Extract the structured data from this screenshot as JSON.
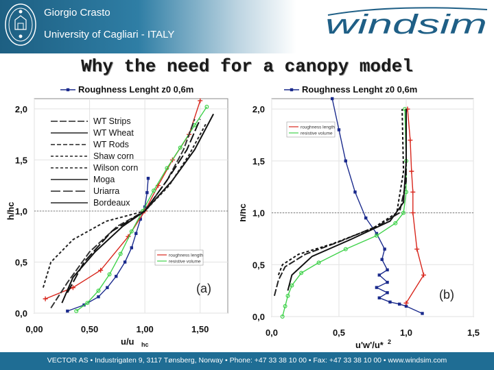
{
  "header": {
    "author": "Giorgio Crasto",
    "affiliation": "University of Cagliari - ITALY",
    "logo_text": "windsim",
    "seal_icon": "university-seal-icon",
    "colors": {
      "band": "#1f6d94",
      "logo": "#1f5f86"
    }
  },
  "title": "Why the need for a canopy model",
  "footer": "VECTOR AS  •  Industrigaten 9, 3117 Tønsberg, Norway  •  Phone: +47 33 38 10 00  •  Fax: +47 33 38 10 00  •  www.windsim.com",
  "chart_data": [
    {
      "type": "line",
      "panel_label": "(a)",
      "xlabel": "u/u",
      "xlabel_sub": "hc",
      "ylabel": "h/hc",
      "xlim": [
        0,
        1.75
      ],
      "ylim": [
        0,
        2.1
      ],
      "x_ticks": [
        "0,00",
        "0,50",
        "1,00",
        "1,50"
      ],
      "x_tick_values": [
        0,
        0.5,
        1.0,
        1.5
      ],
      "y_ticks": [
        "0,0",
        "0,5",
        "1,0",
        "1,5",
        "2,0"
      ],
      "y_tick_values": [
        0,
        0.5,
        1.0,
        1.5,
        2.0
      ],
      "top_legend": "Roughness Lenght z0 0,6m",
      "legend_entries": [
        "WT  Strips",
        "WT  Wheat",
        "WT  Rods",
        "Shaw  corn",
        "Wilson  corn",
        "Moga",
        "Uriarra",
        "Bordeaux"
      ],
      "inset_legend": [
        "roughness length",
        "resistive volume"
      ],
      "series": [
        {
          "name": "Roughness Lenght z0 0,6m",
          "color": "#1a2a8c",
          "marker": "square",
          "x": [
            0.3,
            0.45,
            0.58,
            0.66,
            0.74,
            0.82,
            0.88,
            0.92,
            0.96,
            1.0,
            1.02,
            1.03
          ],
          "y": [
            0.02,
            0.08,
            0.16,
            0.25,
            0.36,
            0.5,
            0.64,
            0.78,
            0.92,
            1.04,
            1.18,
            1.32
          ]
        },
        {
          "name": "roughness length",
          "color": "#d8261c",
          "marker": "plus",
          "x": [
            0.1,
            0.35,
            0.6,
            0.85,
            1.0,
            1.12,
            1.25,
            1.4,
            1.5
          ],
          "y": [
            0.14,
            0.25,
            0.42,
            0.75,
            1.0,
            1.25,
            1.5,
            1.75,
            2.08
          ]
        },
        {
          "name": "resistive volume",
          "color": "#3fd24a",
          "marker": "circle",
          "x": [
            0.38,
            0.48,
            0.58,
            0.68,
            0.78,
            0.88,
            0.98,
            1.08,
            1.2,
            1.32,
            1.45,
            1.56
          ],
          "y": [
            0.02,
            0.1,
            0.22,
            0.38,
            0.58,
            0.8,
            1.0,
            1.2,
            1.42,
            1.62,
            1.84,
            2.02
          ]
        },
        {
          "name": "WT  Strips",
          "color": "#333333",
          "dash": "10 3",
          "x": [
            0.15,
            0.3,
            0.5,
            0.75,
            1.0,
            1.2,
            1.35,
            1.45
          ],
          "y": [
            0.05,
            0.3,
            0.6,
            0.85,
            1.0,
            1.3,
            1.6,
            1.9
          ]
        },
        {
          "name": "Moga",
          "color": "#111111",
          "dash": "",
          "x": [
            0.25,
            0.35,
            0.55,
            0.8,
            1.0,
            1.25,
            1.45,
            1.62
          ],
          "y": [
            0.1,
            0.35,
            0.6,
            0.85,
            1.0,
            1.3,
            1.6,
            1.95
          ]
        },
        {
          "name": "Wilson  corn",
          "color": "#222222",
          "dash": "4 3",
          "x": [
            0.08,
            0.15,
            0.35,
            0.65,
            1.0,
            1.22,
            1.4,
            1.55
          ],
          "y": [
            0.25,
            0.5,
            0.72,
            0.9,
            1.0,
            1.25,
            1.55,
            1.85
          ]
        },
        {
          "name": "Uriarra",
          "color": "#111111",
          "dash": "14 4",
          "x": [
            0.3,
            0.45,
            0.7,
            1.0,
            1.2,
            1.38,
            1.5
          ],
          "y": [
            0.2,
            0.5,
            0.8,
            1.0,
            1.3,
            1.6,
            1.9
          ]
        }
      ]
    },
    {
      "type": "line",
      "panel_label": "(b)",
      "xlabel": "u'w'/u*",
      "xlabel_sup": "2",
      "ylabel": "h/hc",
      "xlim": [
        0,
        1.5
      ],
      "ylim": [
        0,
        2.1
      ],
      "x_ticks": [
        "0,0",
        "0,5",
        "1,0",
        "1,5"
      ],
      "x_tick_values": [
        0,
        0.5,
        1.0,
        1.5
      ],
      "y_ticks": [
        "0,0",
        "0,5",
        "1,0",
        "1,5",
        "2,0"
      ],
      "y_tick_values": [
        0,
        0.5,
        1.0,
        1.5,
        2.0
      ],
      "top_legend": "Roughness Lenght z0 0,6m",
      "inset_legend": [
        "roughness length",
        "resistive volume"
      ],
      "series": [
        {
          "name": "Roughness Lenght z0 0,6m",
          "color": "#1a2a8c",
          "marker": "square",
          "x": [
            0.45,
            0.5,
            0.55,
            0.62,
            0.7,
            0.78,
            0.84,
            0.82,
            0.86,
            0.8,
            0.86,
            0.78,
            0.86,
            0.8,
            0.88,
            0.95,
            1.0,
            1.12
          ],
          "y": [
            2.1,
            1.8,
            1.5,
            1.2,
            0.95,
            0.8,
            0.65,
            0.55,
            0.45,
            0.4,
            0.33,
            0.28,
            0.23,
            0.18,
            0.14,
            0.12,
            0.1,
            0.03
          ]
        },
        {
          "name": "roughness length",
          "color": "#d8261c",
          "marker": "plus",
          "x": [
            1.01,
            1.03,
            1.04,
            1.05,
            1.05,
            1.08,
            1.13,
            1.0
          ],
          "y": [
            2.0,
            1.7,
            1.4,
            1.2,
            1.0,
            0.65,
            0.4,
            0.13
          ]
        },
        {
          "name": "resistive volume",
          "color": "#3fd24a",
          "marker": "circle",
          "x": [
            0.08,
            0.1,
            0.12,
            0.15,
            0.22,
            0.35,
            0.55,
            0.78,
            0.92,
            0.98,
            1.0,
            1.0,
            0.99
          ],
          "y": [
            0.0,
            0.1,
            0.2,
            0.3,
            0.42,
            0.52,
            0.65,
            0.78,
            0.9,
            1.0,
            1.2,
            1.5,
            2.0
          ]
        },
        {
          "name": "",
          "color": "#222222",
          "dash": "10 3",
          "x": [
            0.02,
            0.05,
            0.1,
            0.25,
            0.5,
            0.8,
            0.95,
            1.0,
            1.0
          ],
          "y": [
            0.2,
            0.35,
            0.48,
            0.6,
            0.72,
            0.88,
            1.0,
            1.3,
            2.0
          ]
        },
        {
          "name": "",
          "color": "#111111",
          "dash": "",
          "x": [
            0.12,
            0.15,
            0.3,
            0.6,
            0.88,
            0.98,
            1.0,
            1.0
          ],
          "y": [
            0.25,
            0.4,
            0.58,
            0.75,
            0.92,
            1.1,
            1.5,
            2.0
          ]
        },
        {
          "name": "",
          "color": "#111111",
          "dash": "4 3",
          "x": [
            0.05,
            0.08,
            0.2,
            0.45,
            0.75,
            0.93,
            0.98,
            0.97
          ],
          "y": [
            0.4,
            0.5,
            0.6,
            0.7,
            0.85,
            1.0,
            1.4,
            2.0
          ]
        }
      ]
    }
  ]
}
